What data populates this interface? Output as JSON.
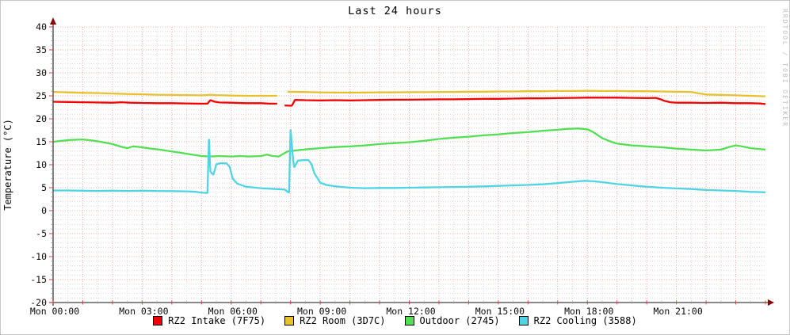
{
  "watermark": "RRDTOOL / TOBI OETIKER",
  "chart_data": {
    "type": "line",
    "title": "Last 24 hours",
    "ylabel": "Temperature (°C)",
    "ylim": [
      -20,
      40
    ],
    "y_tick_step": 5,
    "y_minor_step": 1,
    "xlim_hours": [
      0,
      24
    ],
    "x_major_step_hours": 1,
    "x_minor_step_hours": 0.5,
    "x_tick_hours": [
      0,
      3,
      6,
      9,
      12,
      15,
      18,
      21
    ],
    "x_tick_labels": [
      "Mon 00:00",
      "Mon 03:00",
      "Mon 06:00",
      "Mon 09:00",
      "Mon 12:00",
      "Mon 15:00",
      "Mon 18:00",
      "Mon 21:00"
    ],
    "grid": {
      "major_color": "#f0a8a8",
      "minor_color": "#d9d9d9",
      "on": true
    },
    "axis_color": "#404040",
    "arrow_color": "#8b0000",
    "legend_position": "bottom",
    "series": [
      {
        "name": "RZ2 Intake",
        "legend": "RZ2 Intake (7F75)",
        "color": "#f20000",
        "points": [
          [
            0,
            23.7
          ],
          [
            0.5,
            23.65
          ],
          [
            1,
            23.6
          ],
          [
            1.5,
            23.55
          ],
          [
            2,
            23.5
          ],
          [
            2.3,
            23.6
          ],
          [
            2.6,
            23.5
          ],
          [
            3,
            23.45
          ],
          [
            3.5,
            23.4
          ],
          [
            4,
            23.4
          ],
          [
            4.5,
            23.35
          ],
          [
            5,
            23.3
          ],
          [
            5.2,
            23.3
          ],
          [
            5.3,
            24.05
          ],
          [
            5.45,
            23.7
          ],
          [
            5.6,
            23.55
          ],
          [
            6,
            23.5
          ],
          [
            6.5,
            23.4
          ],
          [
            7,
            23.4
          ],
          [
            7.3,
            23.3
          ],
          [
            7.55,
            23.3
          ],
          null,
          [
            7.8,
            22.9
          ],
          [
            8.0,
            22.85
          ],
          [
            8.05,
            22.9
          ],
          [
            8.15,
            24.1
          ],
          [
            8.5,
            24.05
          ],
          [
            9,
            24.0
          ],
          [
            9.5,
            24.05
          ],
          [
            10,
            24.0
          ],
          [
            10.5,
            24.05
          ],
          [
            11,
            24.1
          ],
          [
            11.5,
            24.15
          ],
          [
            12,
            24.15
          ],
          [
            12.5,
            24.2
          ],
          [
            13,
            24.25
          ],
          [
            13.5,
            24.25
          ],
          [
            14,
            24.3
          ],
          [
            14.5,
            24.35
          ],
          [
            15,
            24.35
          ],
          [
            15.5,
            24.4
          ],
          [
            16,
            24.45
          ],
          [
            16.5,
            24.45
          ],
          [
            17,
            24.5
          ],
          [
            17.5,
            24.55
          ],
          [
            18,
            24.6
          ],
          [
            18.5,
            24.6
          ],
          [
            19,
            24.6
          ],
          [
            19.5,
            24.55
          ],
          [
            20,
            24.5
          ],
          [
            20.3,
            24.55
          ],
          [
            20.45,
            24.3
          ],
          [
            20.6,
            23.9
          ],
          [
            20.8,
            23.6
          ],
          [
            21,
            23.5
          ],
          [
            21.5,
            23.5
          ],
          [
            22,
            23.45
          ],
          [
            22.5,
            23.5
          ],
          [
            23,
            23.4
          ],
          [
            23.5,
            23.4
          ],
          [
            23.8,
            23.35
          ],
          [
            24,
            23.2
          ]
        ]
      },
      {
        "name": "RZ2 Room",
        "legend": "RZ2 Room (3D7C)",
        "color": "#e8c22e",
        "points": [
          [
            0,
            25.85
          ],
          [
            0.5,
            25.75
          ],
          [
            1,
            25.65
          ],
          [
            1.5,
            25.6
          ],
          [
            2,
            25.5
          ],
          [
            2.5,
            25.4
          ],
          [
            3,
            25.35
          ],
          [
            3.5,
            25.25
          ],
          [
            4,
            25.2
          ],
          [
            4.5,
            25.15
          ],
          [
            5,
            25.1
          ],
          [
            5.3,
            25.25
          ],
          [
            5.5,
            25.15
          ],
          [
            6,
            25.05
          ],
          [
            6.5,
            25.0
          ],
          [
            7,
            25.0
          ],
          [
            7.55,
            25.0
          ],
          null,
          [
            7.9,
            25.9
          ],
          [
            8.3,
            25.85
          ],
          [
            9,
            25.75
          ],
          [
            9.5,
            25.7
          ],
          [
            10,
            25.7
          ],
          [
            10.5,
            25.7
          ],
          [
            11,
            25.75
          ],
          [
            11.5,
            25.75
          ],
          [
            12,
            25.8
          ],
          [
            12.5,
            25.8
          ],
          [
            13,
            25.85
          ],
          [
            13.5,
            25.85
          ],
          [
            14,
            25.9
          ],
          [
            14.5,
            25.9
          ],
          [
            15,
            25.95
          ],
          [
            15.5,
            25.95
          ],
          [
            16,
            26.0
          ],
          [
            16.5,
            26.0
          ],
          [
            17,
            26.05
          ],
          [
            17.5,
            26.05
          ],
          [
            18,
            26.1
          ],
          [
            18.5,
            26.05
          ],
          [
            19,
            26.05
          ],
          [
            19.5,
            26.0
          ],
          [
            20,
            26.0
          ],
          [
            20.5,
            25.95
          ],
          [
            21,
            25.9
          ],
          [
            21.5,
            25.85
          ],
          [
            21.7,
            25.6
          ],
          [
            22,
            25.3
          ],
          [
            22.5,
            25.2
          ],
          [
            23,
            25.1
          ],
          [
            23.5,
            25.0
          ],
          [
            24,
            24.9
          ]
        ]
      },
      {
        "name": "Outdoor",
        "legend": "Outdoor (2745)",
        "color": "#54de54",
        "points": [
          [
            0,
            15.0
          ],
          [
            0.3,
            15.2
          ],
          [
            0.6,
            15.4
          ],
          [
            1,
            15.5
          ],
          [
            1.3,
            15.3
          ],
          [
            1.6,
            15.0
          ],
          [
            2,
            14.5
          ],
          [
            2.3,
            13.9
          ],
          [
            2.5,
            13.6
          ],
          [
            2.7,
            14.0
          ],
          [
            3,
            13.8
          ],
          [
            3.3,
            13.5
          ],
          [
            3.6,
            13.3
          ],
          [
            4,
            12.9
          ],
          [
            4.3,
            12.6
          ],
          [
            4.6,
            12.3
          ],
          [
            5,
            11.9
          ],
          [
            5.3,
            11.8
          ],
          [
            5.6,
            11.9
          ],
          [
            6,
            11.8
          ],
          [
            6.3,
            11.9
          ],
          [
            6.6,
            11.8
          ],
          [
            7,
            11.9
          ],
          [
            7.2,
            12.2
          ],
          [
            7.4,
            11.9
          ],
          [
            7.6,
            11.8
          ],
          [
            7.9,
            12.9
          ],
          [
            8.3,
            13.2
          ],
          [
            8.6,
            13.4
          ],
          [
            9,
            13.6
          ],
          [
            9.5,
            13.85
          ],
          [
            10,
            14.0
          ],
          [
            10.5,
            14.2
          ],
          [
            11,
            14.5
          ],
          [
            11.5,
            14.7
          ],
          [
            12,
            14.9
          ],
          [
            12.5,
            15.2
          ],
          [
            13,
            15.6
          ],
          [
            13.5,
            15.9
          ],
          [
            14,
            16.1
          ],
          [
            14.5,
            16.4
          ],
          [
            15,
            16.6
          ],
          [
            15.5,
            16.9
          ],
          [
            16,
            17.1
          ],
          [
            16.5,
            17.4
          ],
          [
            17,
            17.6
          ],
          [
            17.3,
            17.8
          ],
          [
            17.7,
            17.9
          ],
          [
            18,
            17.7
          ],
          [
            18.2,
            17.1
          ],
          [
            18.5,
            15.8
          ],
          [
            18.8,
            15.0
          ],
          [
            19,
            14.6
          ],
          [
            19.5,
            14.2
          ],
          [
            20,
            14.0
          ],
          [
            20.5,
            13.8
          ],
          [
            21,
            13.5
          ],
          [
            21.5,
            13.3
          ],
          [
            22,
            13.1
          ],
          [
            22.5,
            13.3
          ],
          [
            22.8,
            13.9
          ],
          [
            23,
            14.2
          ],
          [
            23.2,
            14.0
          ],
          [
            23.5,
            13.6
          ],
          [
            24,
            13.3
          ]
        ]
      },
      {
        "name": "RZ2 Cooling",
        "legend": "RZ2 Cooling (3588)",
        "color": "#4fd4e4",
        "points": [
          [
            0,
            4.4
          ],
          [
            0.5,
            4.4
          ],
          [
            1,
            4.35
          ],
          [
            1.5,
            4.3
          ],
          [
            2,
            4.35
          ],
          [
            2.5,
            4.3
          ],
          [
            3,
            4.35
          ],
          [
            3.5,
            4.3
          ],
          [
            4,
            4.25
          ],
          [
            4.5,
            4.2
          ],
          [
            4.8,
            4.1
          ],
          [
            5.05,
            3.9
          ],
          [
            5.2,
            3.85
          ],
          [
            5.25,
            15.6
          ],
          [
            5.3,
            8.5
          ],
          [
            5.4,
            7.8
          ],
          [
            5.5,
            10.1
          ],
          [
            5.65,
            10.35
          ],
          [
            5.85,
            10.3
          ],
          [
            5.95,
            9.5
          ],
          [
            6.05,
            7.0
          ],
          [
            6.2,
            5.9
          ],
          [
            6.5,
            5.2
          ],
          [
            7,
            4.9
          ],
          [
            7.5,
            4.7
          ],
          [
            7.8,
            4.6
          ],
          [
            7.95,
            3.9
          ],
          [
            8.0,
            17.7
          ],
          [
            8.08,
            11.5
          ],
          [
            8.12,
            9.4
          ],
          [
            8.25,
            10.9
          ],
          [
            8.45,
            11.0
          ],
          [
            8.6,
            11.0
          ],
          [
            8.7,
            10.2
          ],
          [
            8.8,
            8.2
          ],
          [
            9,
            6.1
          ],
          [
            9.2,
            5.6
          ],
          [
            9.5,
            5.3
          ],
          [
            10,
            5.0
          ],
          [
            10.5,
            4.9
          ],
          [
            11,
            4.95
          ],
          [
            11.5,
            4.95
          ],
          [
            12,
            5.0
          ],
          [
            12.5,
            5.05
          ],
          [
            13,
            5.1
          ],
          [
            13.5,
            5.15
          ],
          [
            14,
            5.2
          ],
          [
            14.5,
            5.3
          ],
          [
            15,
            5.4
          ],
          [
            15.5,
            5.5
          ],
          [
            16,
            5.6
          ],
          [
            16.5,
            5.75
          ],
          [
            17,
            6.0
          ],
          [
            17.5,
            6.3
          ],
          [
            17.9,
            6.5
          ],
          [
            18.2,
            6.4
          ],
          [
            18.5,
            6.2
          ],
          [
            19,
            5.8
          ],
          [
            19.5,
            5.5
          ],
          [
            20,
            5.2
          ],
          [
            20.5,
            5.0
          ],
          [
            21,
            4.85
          ],
          [
            21.5,
            4.7
          ],
          [
            22,
            4.5
          ],
          [
            22.5,
            4.4
          ],
          [
            23,
            4.3
          ],
          [
            23.5,
            4.1
          ],
          [
            24,
            4.0
          ]
        ]
      }
    ]
  }
}
